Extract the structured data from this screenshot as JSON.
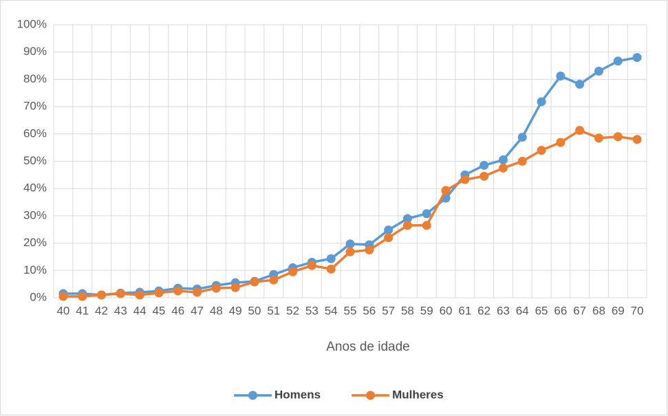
{
  "chart_data": {
    "type": "line",
    "x_label": "Anos de idade",
    "categories": [
      "40",
      "41",
      "42",
      "43",
      "44",
      "45",
      "46",
      "47",
      "48",
      "49",
      "50",
      "51",
      "52",
      "53",
      "54",
      "55",
      "56",
      "57",
      "58",
      "59",
      "60",
      "61",
      "62",
      "63",
      "64",
      "65",
      "66",
      "67",
      "68",
      "69",
      "70"
    ],
    "series": [
      {
        "name": "Homens",
        "color": "#5b9bd5",
        "values": [
          1.5,
          1.5,
          1,
          1.7,
          2,
          2.5,
          3.5,
          3.2,
          4.5,
          5.5,
          6,
          8.5,
          11,
          13,
          14.3,
          19.7,
          19.4,
          24.8,
          29,
          30.8,
          36.5,
          45,
          48.5,
          50.5,
          58.8,
          71.8,
          81.2,
          78.2,
          83,
          86.7,
          88
        ]
      },
      {
        "name": "Mulheres",
        "color": "#ed7d31",
        "values": [
          0.5,
          0.5,
          1,
          1.5,
          1,
          1.8,
          2.5,
          2,
          3.5,
          3.7,
          5.8,
          6.5,
          9.5,
          11.8,
          10.5,
          16.8,
          17.5,
          22,
          26.5,
          26.5,
          39.3,
          43.3,
          44.5,
          47.5,
          50,
          54,
          56.9,
          61.3,
          58.5,
          59,
          58
        ]
      }
    ],
    "ylim": [
      0,
      100
    ],
    "yticks": [
      {
        "value": 0,
        "label": "0%"
      },
      {
        "value": 10,
        "label": "10%"
      },
      {
        "value": 20,
        "label": "20%"
      },
      {
        "value": 30,
        "label": "30%"
      },
      {
        "value": 40,
        "label": "40%"
      },
      {
        "value": 50,
        "label": "50%"
      },
      {
        "value": 60,
        "label": "60%"
      },
      {
        "value": 70,
        "label": "70%"
      },
      {
        "value": 80,
        "label": "80%"
      },
      {
        "value": 90,
        "label": "90%"
      },
      {
        "value": 100,
        "label": "100%"
      }
    ],
    "grid": true,
    "legend": "bottom"
  }
}
